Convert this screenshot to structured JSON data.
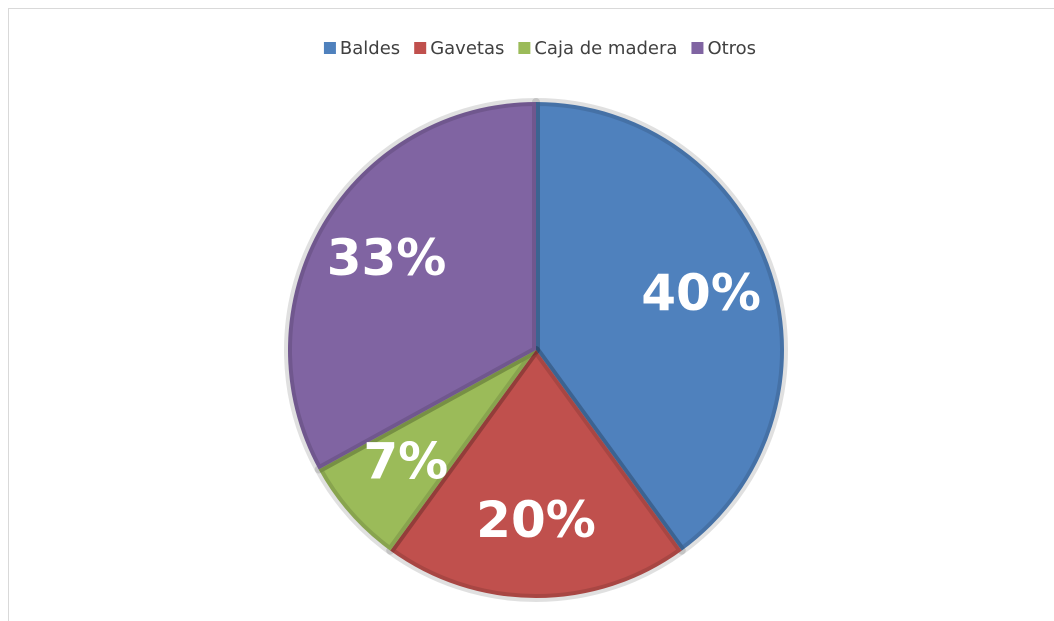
{
  "chart_data": {
    "type": "pie",
    "categories": [
      "Baldes",
      "Gavetas",
      "Caja de madera",
      "Otros"
    ],
    "values": [
      40,
      20,
      7,
      33
    ],
    "value_labels": [
      "40%",
      "20%",
      "7%",
      "33%"
    ],
    "colors": [
      "#4f81bd",
      "#c0504d",
      "#9bbb59",
      "#8064a2"
    ],
    "legend": "top"
  }
}
